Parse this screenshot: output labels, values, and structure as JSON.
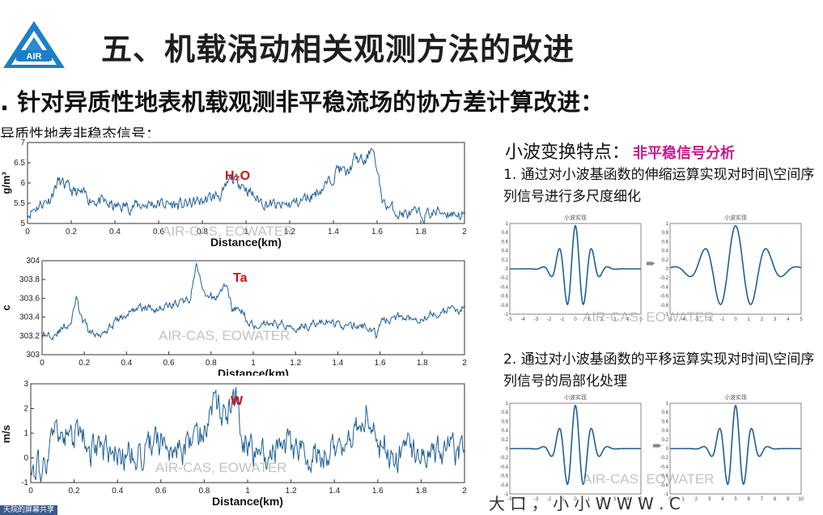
{
  "header": {
    "title": "五、机载涡动相关观测方法的改进",
    "logo_text": "AIR"
  },
  "subtitle": ". 针对异质性地表机载观测非平稳流场的协方差计算改进：",
  "caption": "异质性地表非稳态信号：",
  "watermark": "AIR-CAS, EOWATER",
  "colors": {
    "signal": "#1f5f96",
    "label_red": "#cc1111",
    "accent": "#c8198c",
    "logo_blue": "#1b7fc8"
  },
  "chart_data": [
    {
      "type": "line",
      "annotation": "H₂O",
      "xlabel": "Distance(km)",
      "ylabel": "g/m³",
      "xlim": [
        0,
        2
      ],
      "ylim": [
        5,
        7
      ],
      "xticks": [
        "0",
        "0.2",
        "0.4",
        "0.6",
        "0.8",
        "1",
        "1.2",
        "1.4",
        "1.6",
        "1.8",
        "2"
      ],
      "yticks": [
        "5",
        "5.5",
        "6",
        "6.5",
        "7"
      ],
      "base": 5.3,
      "noise": 0.12,
      "keypoints": [
        [
          0,
          5.25
        ],
        [
          0.05,
          5.45
        ],
        [
          0.1,
          5.6
        ],
        [
          0.14,
          6.05
        ],
        [
          0.2,
          5.8
        ],
        [
          0.3,
          5.6
        ],
        [
          0.4,
          5.4
        ],
        [
          0.5,
          5.45
        ],
        [
          0.6,
          5.5
        ],
        [
          0.7,
          5.45
        ],
        [
          0.8,
          5.55
        ],
        [
          0.9,
          5.75
        ],
        [
          0.93,
          6.1
        ],
        [
          0.98,
          6.0
        ],
        [
          1.05,
          5.6
        ],
        [
          1.15,
          5.4
        ],
        [
          1.25,
          5.55
        ],
        [
          1.3,
          5.7
        ],
        [
          1.38,
          6.0
        ],
        [
          1.42,
          6.4
        ],
        [
          1.46,
          6.2
        ],
        [
          1.5,
          6.6
        ],
        [
          1.55,
          6.5
        ],
        [
          1.58,
          7.0
        ],
        [
          1.6,
          6.2
        ],
        [
          1.63,
          5.5
        ],
        [
          1.7,
          5.25
        ],
        [
          1.8,
          5.2
        ],
        [
          1.9,
          5.3
        ],
        [
          2.0,
          5.2
        ]
      ]
    },
    {
      "type": "line",
      "annotation": "Ta",
      "xlabel": "Distance(km)",
      "ylabel": "c",
      "xlim": [
        0,
        2
      ],
      "ylim": [
        303,
        304
      ],
      "xticks": [
        "0",
        "0.2",
        "0.4",
        "0.6",
        "0.8",
        "1",
        "1.2",
        "1.4",
        "1.6",
        "1.8",
        "2"
      ],
      "yticks": [
        "303",
        "303.2",
        "303.4",
        "303.6",
        "303.8",
        "304"
      ],
      "base": 303.4,
      "noise": 0.035,
      "keypoints": [
        [
          0,
          303.2
        ],
        [
          0.08,
          303.25
        ],
        [
          0.14,
          303.35
        ],
        [
          0.16,
          303.6
        ],
        [
          0.19,
          303.35
        ],
        [
          0.25,
          303.2
        ],
        [
          0.35,
          303.35
        ],
        [
          0.45,
          303.5
        ],
        [
          0.55,
          303.5
        ],
        [
          0.65,
          303.55
        ],
        [
          0.7,
          303.6
        ],
        [
          0.73,
          303.95
        ],
        [
          0.77,
          303.6
        ],
        [
          0.82,
          303.6
        ],
        [
          0.87,
          303.75
        ],
        [
          0.9,
          303.5
        ],
        [
          0.95,
          303.45
        ],
        [
          1.0,
          303.3
        ],
        [
          1.05,
          303.35
        ],
        [
          1.2,
          303.3
        ],
        [
          1.35,
          303.35
        ],
        [
          1.45,
          303.3
        ],
        [
          1.55,
          303.3
        ],
        [
          1.58,
          303.2
        ],
        [
          1.6,
          303.35
        ],
        [
          1.7,
          303.4
        ],
        [
          1.8,
          303.4
        ],
        [
          1.9,
          303.45
        ],
        [
          2.0,
          303.5
        ]
      ]
    },
    {
      "type": "line",
      "annotation": "W",
      "xlabel": "Distance(km)",
      "ylabel": "m/s",
      "xlim": [
        0,
        2
      ],
      "ylim": [
        -1,
        3
      ],
      "xticks": [
        "0",
        "0.2",
        "0.4",
        "0.6",
        "0.8",
        "1",
        "1.2",
        "1.4",
        "1.6",
        "1.8",
        "2"
      ],
      "yticks": [
        "-1",
        "0",
        "1",
        "2",
        "3"
      ],
      "base": 0.2,
      "noise": 0.5,
      "keypoints": [
        [
          0,
          0
        ],
        [
          0.05,
          -0.6
        ],
        [
          0.1,
          0.8
        ],
        [
          0.2,
          0.9
        ],
        [
          0.3,
          0.3
        ],
        [
          0.4,
          0.0
        ],
        [
          0.5,
          0.2
        ],
        [
          0.6,
          0.6
        ],
        [
          0.7,
          0.4
        ],
        [
          0.8,
          1.2
        ],
        [
          0.85,
          2.2
        ],
        [
          0.9,
          1.8
        ],
        [
          0.95,
          2.1
        ],
        [
          1.0,
          0.3
        ],
        [
          1.1,
          0.2
        ],
        [
          1.2,
          0.5
        ],
        [
          1.3,
          0.1
        ],
        [
          1.4,
          0.3
        ],
        [
          1.5,
          1.3
        ],
        [
          1.55,
          1.9
        ],
        [
          1.6,
          0.6
        ],
        [
          1.7,
          0.1
        ],
        [
          1.8,
          0.1
        ],
        [
          1.9,
          0.3
        ],
        [
          2.0,
          0.0
        ]
      ]
    }
  ],
  "wavelet": {
    "heading": "小波变换特点：",
    "heading_highlight": "非平稳信号分析",
    "point1": "1. 通过对小波基函数的伸缩运算实现对时间\\空间序列信号进行多尺度细化",
    "point2": "2. 通过对小波基函数的平移运算实现对时间\\空间序列信号的局部化处理",
    "arrow": "➨",
    "mini_plots": [
      {
        "title": "小波实现",
        "xticks": [
          "-5",
          "-4",
          "-3",
          "-2",
          "-1",
          "0",
          "1",
          "2",
          "3",
          "4",
          "5"
        ],
        "yticks": [
          "1",
          "0.8",
          "0.6",
          "0.4",
          "0.2",
          "0",
          "-0.2",
          "-0.4",
          "-0.6",
          "-0.8",
          "-1"
        ],
        "xmin": -5,
        "xmax": 5,
        "center": 0,
        "scale": 1.0
      },
      {
        "title": "小波实现",
        "xticks": [
          "-5",
          "-4",
          "-3",
          "-2",
          "-1",
          "0",
          "1",
          "2",
          "3",
          "4",
          "5"
        ],
        "yticks": [
          "1",
          "0.8",
          "0.6",
          "0.4",
          "0.2",
          "0",
          "-0.2",
          "-0.4",
          "-0.6",
          "-0.8",
          "-1"
        ],
        "xmin": -5,
        "xmax": 5,
        "center": 0,
        "scale": 1.9
      },
      {
        "title": "小波实现",
        "xticks": [
          "-5",
          "-4",
          "-3",
          "-2",
          "-1",
          "0",
          "1",
          "2",
          "3",
          "4",
          "5"
        ],
        "yticks": [
          "1",
          "0.8",
          "0.6",
          "0.4",
          "0.2",
          "0",
          "-0.2",
          "-0.4",
          "-0.6",
          "-0.8",
          "-1"
        ],
        "xmin": -5,
        "xmax": 5,
        "center": 0,
        "scale": 1.0
      },
      {
        "title": "小波实现",
        "xticks": [
          "0",
          "1",
          "2",
          "3",
          "4",
          "5",
          "6",
          "7",
          "8",
          "9",
          "10"
        ],
        "yticks": [
          "1",
          "0.8",
          "0.6",
          "0.4",
          "0.2",
          "0",
          "-0.2",
          "-0.4",
          "-0.6",
          "-0.8",
          "-1"
        ],
        "xmin": 0,
        "xmax": 10,
        "center": 5,
        "scale": 1.0
      }
    ]
  },
  "footer": {
    "tag": "天院的屏幕共享",
    "fragment": "大 口 ， 小 小 W W W . C"
  }
}
